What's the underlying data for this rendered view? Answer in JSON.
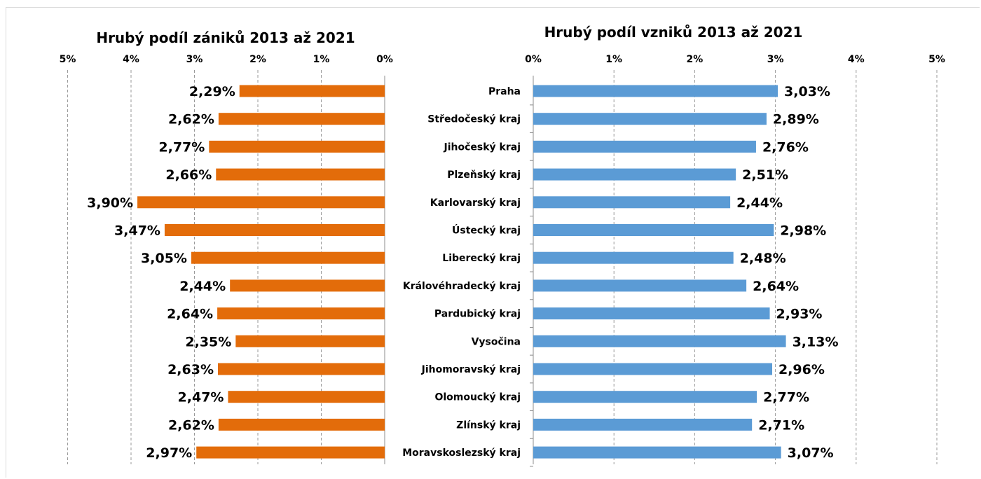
{
  "chart_data": [
    {
      "type": "bar",
      "orientation": "horizontal",
      "x_direction": "reversed",
      "title": "Hrubý podíl zániků 2013 až 2021",
      "categories": [
        "Praha",
        "Středočeský kraj",
        "Jihočeský kraj",
        "Plzeňský kraj",
        "Karlovarský kraj",
        "Ústecký kraj",
        "Liberecký kraj",
        "Královéhradecký kraj",
        "Pardubický kraj",
        "Vysočina",
        "Jihomoravský kraj",
        "Olomoucký kraj",
        "Zlínský kraj",
        "Moravskoslezský kraj"
      ],
      "values": [
        2.29,
        2.62,
        2.77,
        2.66,
        3.9,
        3.47,
        3.05,
        2.44,
        2.64,
        2.35,
        2.63,
        2.47,
        2.62,
        2.97
      ],
      "value_labels": [
        "2,29%",
        "2,62%",
        "2,77%",
        "2,66%",
        "3,90%",
        "3,47%",
        "3,05%",
        "2,44%",
        "2,64%",
        "2,35%",
        "2,63%",
        "2,47%",
        "2,62%",
        "2,97%"
      ],
      "color": "#E36C0A",
      "xlim": [
        0,
        5
      ],
      "x_ticks": [
        0,
        1,
        2,
        3,
        4,
        5
      ],
      "x_tick_labels": [
        "0%",
        "1%",
        "2%",
        "3%",
        "4%",
        "5%"
      ],
      "axis_position": "top",
      "grid": "vertical dashed",
      "legend": "none"
    },
    {
      "type": "bar",
      "orientation": "horizontal",
      "title": "Hrubý podíl vzniků 2013 až 2021",
      "categories": [
        "Praha",
        "Středočeský kraj",
        "Jihočeský kraj",
        "Plzeňský kraj",
        "Karlovarský kraj",
        "Ústecký kraj",
        "Liberecký kraj",
        "Královéhradecký kraj",
        "Pardubický kraj",
        "Vysočina",
        "Jihomoravský kraj",
        "Olomoucký kraj",
        "Zlínský kraj",
        "Moravskoslezský kraj"
      ],
      "values": [
        3.03,
        2.89,
        2.76,
        2.51,
        2.44,
        2.98,
        2.48,
        2.64,
        2.93,
        3.13,
        2.96,
        2.77,
        2.71,
        3.07
      ],
      "value_labels": [
        "3,03%",
        "2,89%",
        "2,76%",
        "2,51%",
        "2,44%",
        "2,98%",
        "2,48%",
        "2,64%",
        "2,93%",
        "3,13%",
        "2,96%",
        "2,77%",
        "2,71%",
        "3,07%"
      ],
      "color": "#5B9BD5",
      "xlim": [
        0,
        5
      ],
      "x_ticks": [
        0,
        1,
        2,
        3,
        4,
        5
      ],
      "x_tick_labels": [
        "0%",
        "1%",
        "2%",
        "3%",
        "4%",
        "5%"
      ],
      "axis_position": "top",
      "grid": "vertical dashed",
      "legend": "none"
    }
  ]
}
